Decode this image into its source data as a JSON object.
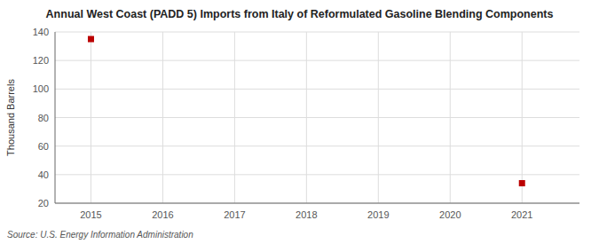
{
  "chart_data": {
    "type": "scatter",
    "title": "Annual West Coast (PADD 5) Imports from Italy of Reformulated Gasoline Blending Components",
    "ylabel": "Thousand Barrels",
    "source": "Source: U.S. Energy Information Administration",
    "x": [
      2015,
      2021
    ],
    "values": [
      135,
      34
    ],
    "color": "#bb0000",
    "marker": "square",
    "xlim": [
      2014.5,
      2021.8
    ],
    "ylim": [
      20,
      140
    ],
    "xticks": [
      2015,
      2016,
      2017,
      2018,
      2019,
      2020,
      2021
    ],
    "yticks": [
      20,
      40,
      60,
      80,
      100,
      120,
      140
    ],
    "grid": true
  }
}
